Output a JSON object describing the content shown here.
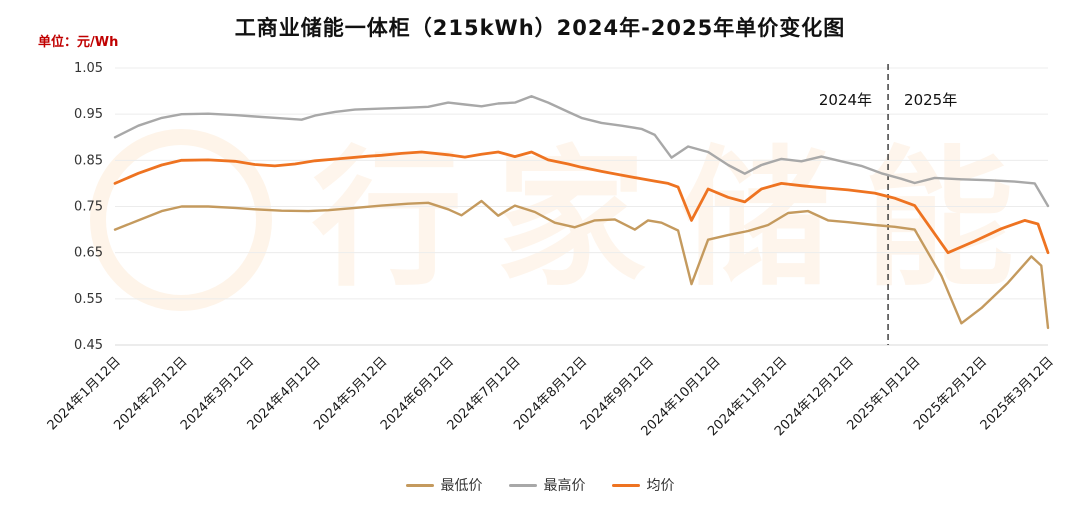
{
  "title": "工商业储能一体柜（215kWh）2024年-2025年单价变化图",
  "unit_label": "单位：元/Wh",
  "watermark": "行家储能",
  "annotations": {
    "left_year": "2024年",
    "right_year": "2025年"
  },
  "chart_data": {
    "type": "line",
    "title": "工商业储能一体柜（215kWh）2024年-2025年单价变化图",
    "ylabel": "元/Wh",
    "ylim": [
      0.45,
      1.05
    ],
    "y_ticks": [
      0.45,
      0.55,
      0.65,
      0.75,
      0.85,
      0.95,
      1.05
    ],
    "grid": "horizontal",
    "legend_position": "bottom",
    "divider_x": 11.6,
    "x_tick_labels": [
      "2024年1月12日",
      "2024年2月12日",
      "2024年3月12日",
      "2024年4月12日",
      "2024年5月12日",
      "2024年6月12日",
      "2024年7月12日",
      "2024年8月12日",
      "2024年9月12日",
      "2024年10月12日",
      "2024年11月12日",
      "2024年12月12日",
      "2025年1月12日",
      "2025年2月12日",
      "2025年3月12日"
    ],
    "series": [
      {
        "name": "最低价",
        "color": "#C49A5E",
        "points": [
          [
            0,
            0.7
          ],
          [
            0.35,
            0.72
          ],
          [
            0.7,
            0.74
          ],
          [
            1,
            0.75
          ],
          [
            1.4,
            0.75
          ],
          [
            1.8,
            0.747
          ],
          [
            2.1,
            0.744
          ],
          [
            2.5,
            0.741
          ],
          [
            2.9,
            0.74
          ],
          [
            3.2,
            0.742
          ],
          [
            3.6,
            0.747
          ],
          [
            4,
            0.752
          ],
          [
            4.4,
            0.756
          ],
          [
            4.7,
            0.758
          ],
          [
            5,
            0.744
          ],
          [
            5.2,
            0.731
          ],
          [
            5.5,
            0.762
          ],
          [
            5.75,
            0.73
          ],
          [
            6,
            0.752
          ],
          [
            6.3,
            0.738
          ],
          [
            6.6,
            0.715
          ],
          [
            6.9,
            0.705
          ],
          [
            7.2,
            0.72
          ],
          [
            7.5,
            0.722
          ],
          [
            7.8,
            0.7
          ],
          [
            8,
            0.72
          ],
          [
            8.2,
            0.715
          ],
          [
            8.45,
            0.698
          ],
          [
            8.65,
            0.582
          ],
          [
            8.9,
            0.678
          ],
          [
            9.2,
            0.688
          ],
          [
            9.5,
            0.697
          ],
          [
            9.8,
            0.71
          ],
          [
            10.1,
            0.736
          ],
          [
            10.4,
            0.74
          ],
          [
            10.7,
            0.72
          ],
          [
            11,
            0.716
          ],
          [
            11.4,
            0.71
          ],
          [
            11.7,
            0.706
          ],
          [
            12,
            0.7
          ],
          [
            12.4,
            0.6
          ],
          [
            12.7,
            0.497
          ],
          [
            13,
            0.53
          ],
          [
            13.4,
            0.585
          ],
          [
            13.75,
            0.642
          ],
          [
            13.9,
            0.622
          ],
          [
            14,
            0.487
          ]
        ]
      },
      {
        "name": "最高价",
        "color": "#A8A8A8",
        "points": [
          [
            0,
            0.9
          ],
          [
            0.35,
            0.925
          ],
          [
            0.7,
            0.942
          ],
          [
            1,
            0.95
          ],
          [
            1.4,
            0.951
          ],
          [
            1.8,
            0.948
          ],
          [
            2.1,
            0.945
          ],
          [
            2.5,
            0.941
          ],
          [
            2.8,
            0.938
          ],
          [
            3,
            0.947
          ],
          [
            3.3,
            0.955
          ],
          [
            3.6,
            0.96
          ],
          [
            4,
            0.962
          ],
          [
            4.4,
            0.964
          ],
          [
            4.7,
            0.966
          ],
          [
            5,
            0.975
          ],
          [
            5.25,
            0.971
          ],
          [
            5.5,
            0.967
          ],
          [
            5.75,
            0.973
          ],
          [
            6,
            0.975
          ],
          [
            6.25,
            0.989
          ],
          [
            6.5,
            0.975
          ],
          [
            6.8,
            0.955
          ],
          [
            7,
            0.942
          ],
          [
            7.3,
            0.931
          ],
          [
            7.6,
            0.925
          ],
          [
            7.9,
            0.918
          ],
          [
            8.1,
            0.905
          ],
          [
            8.35,
            0.856
          ],
          [
            8.6,
            0.88
          ],
          [
            8.9,
            0.868
          ],
          [
            9.2,
            0.84
          ],
          [
            9.45,
            0.821
          ],
          [
            9.7,
            0.84
          ],
          [
            10,
            0.853
          ],
          [
            10.3,
            0.848
          ],
          [
            10.6,
            0.858
          ],
          [
            10.9,
            0.848
          ],
          [
            11.2,
            0.838
          ],
          [
            11.5,
            0.822
          ],
          [
            11.8,
            0.81
          ],
          [
            12,
            0.801
          ],
          [
            12.3,
            0.812
          ],
          [
            12.7,
            0.809
          ],
          [
            13.1,
            0.807
          ],
          [
            13.5,
            0.804
          ],
          [
            13.8,
            0.8
          ],
          [
            14,
            0.751
          ]
        ]
      },
      {
        "name": "均价",
        "color": "#EE7321",
        "points": [
          [
            0,
            0.8
          ],
          [
            0.35,
            0.822
          ],
          [
            0.7,
            0.84
          ],
          [
            1,
            0.85
          ],
          [
            1.4,
            0.851
          ],
          [
            1.8,
            0.848
          ],
          [
            2.1,
            0.841
          ],
          [
            2.4,
            0.838
          ],
          [
            2.7,
            0.842
          ],
          [
            3,
            0.849
          ],
          [
            3.4,
            0.854
          ],
          [
            3.8,
            0.859
          ],
          [
            4,
            0.861
          ],
          [
            4.3,
            0.865
          ],
          [
            4.6,
            0.868
          ],
          [
            5,
            0.862
          ],
          [
            5.25,
            0.857
          ],
          [
            5.5,
            0.863
          ],
          [
            5.75,
            0.868
          ],
          [
            6,
            0.858
          ],
          [
            6.25,
            0.868
          ],
          [
            6.5,
            0.851
          ],
          [
            6.8,
            0.842
          ],
          [
            7,
            0.835
          ],
          [
            7.3,
            0.826
          ],
          [
            7.6,
            0.818
          ],
          [
            7.9,
            0.81
          ],
          [
            8.1,
            0.805
          ],
          [
            8.3,
            0.8
          ],
          [
            8.45,
            0.792
          ],
          [
            8.65,
            0.72
          ],
          [
            8.9,
            0.788
          ],
          [
            9.2,
            0.77
          ],
          [
            9.45,
            0.76
          ],
          [
            9.7,
            0.788
          ],
          [
            10,
            0.8
          ],
          [
            10.3,
            0.795
          ],
          [
            10.6,
            0.791
          ],
          [
            11,
            0.786
          ],
          [
            11.4,
            0.779
          ],
          [
            11.7,
            0.768
          ],
          [
            12,
            0.752
          ],
          [
            12.5,
            0.65
          ],
          [
            12.9,
            0.675
          ],
          [
            13.3,
            0.702
          ],
          [
            13.65,
            0.72
          ],
          [
            13.85,
            0.712
          ],
          [
            14,
            0.65
          ]
        ]
      }
    ]
  }
}
